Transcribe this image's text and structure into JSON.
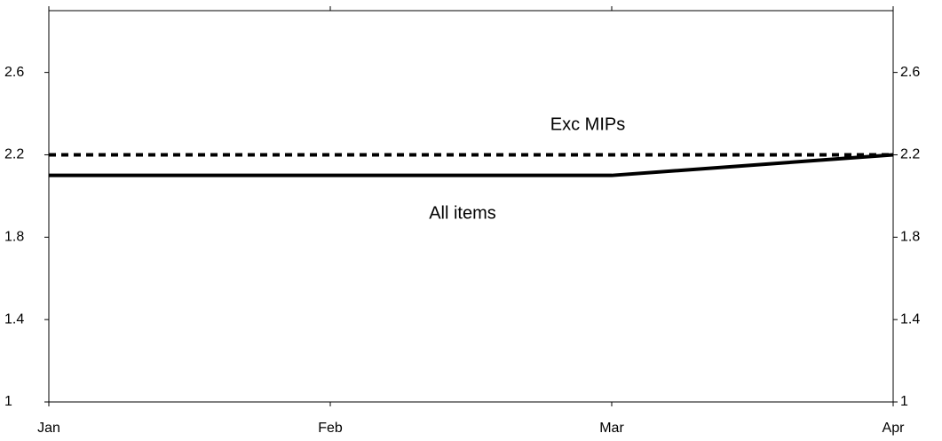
{
  "chart_data": {
    "type": "line",
    "categories": [
      "Jan",
      "Feb",
      "Mar",
      "Apr"
    ],
    "series": [
      {
        "name": "All items",
        "color": "#000000",
        "dash": "solid",
        "values": [
          2.1,
          2.1,
          2.1,
          2.2
        ]
      },
      {
        "name": "Exc MIPs",
        "color": "#000000",
        "dash": "dotted",
        "values": [
          2.2,
          2.2,
          2.2,
          2.2
        ]
      }
    ],
    "ylim": [
      1,
      2.9
    ],
    "yticks": [
      1,
      1.4,
      1.8,
      2.2,
      2.6
    ],
    "grid": false
  }
}
